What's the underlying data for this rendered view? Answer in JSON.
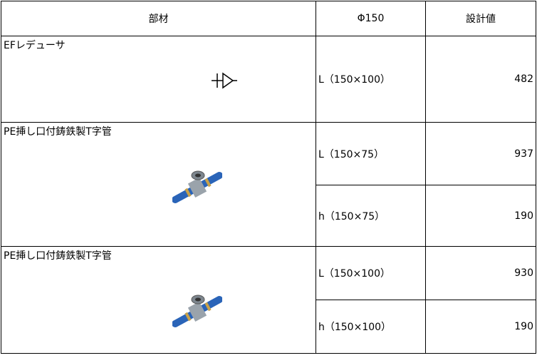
{
  "header": {
    "columns": [
      "部材",
      "Φ150",
      "設計値"
    ]
  },
  "table": {
    "rows": [
      {
        "name": "EFレデューサ",
        "specs": [
          {
            "dimension": "L（150×100）",
            "value": 482
          }
        ]
      },
      {
        "name": "PE挿し口付鋳鉄製T字管",
        "specs": [
          {
            "dimension": "L（150×75）",
            "value": 937
          },
          {
            "dimension": "h（150×75）",
            "value": 190
          }
        ]
      },
      {
        "name": "PE挿し口付鋳鉄製T字管",
        "specs": [
          {
            "dimension": "L（150×100）",
            "value": 930
          },
          {
            "dimension": "h（150×100）",
            "value": 190
          }
        ]
      }
    ]
  }
}
